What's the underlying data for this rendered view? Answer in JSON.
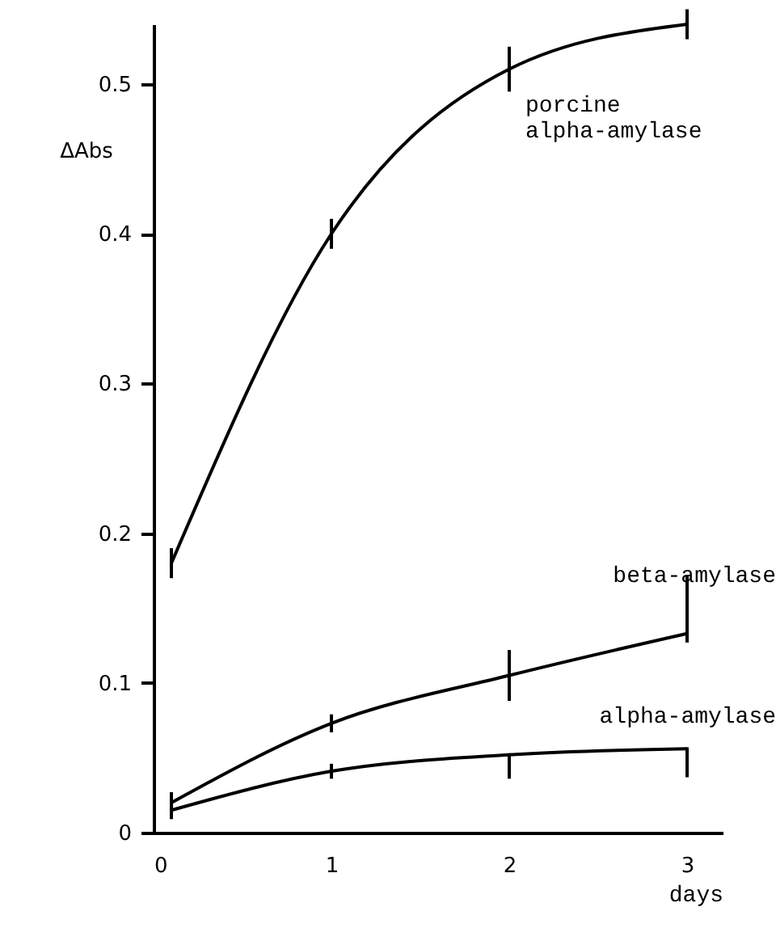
{
  "chart_data": {
    "type": "line",
    "xlabel": "days",
    "ylabel": "ΔAbs",
    "xlim": [
      0,
      3.2
    ],
    "ylim": [
      0,
      0.54
    ],
    "xticks": [
      0,
      1,
      2,
      3
    ],
    "yticks": [
      0,
      0.1,
      0.2,
      0.3,
      0.4,
      0.5
    ],
    "marker": "none",
    "line_style": "solid",
    "grid": false,
    "series": [
      {
        "name": "porcine alpha-amylase",
        "color": "#000000",
        "x": [
          0.1,
          1,
          2,
          3
        ],
        "values": [
          0.18,
          0.4,
          0.51,
          0.54
        ],
        "errors": [
          0.01,
          0.01,
          0.015,
          0.01
        ]
      },
      {
        "name": "beta-amylase",
        "color": "#000000",
        "x": [
          0.1,
          1,
          2,
          3
        ],
        "values": [
          0.02,
          0.073,
          0.105,
          0.133
        ],
        "errors": [
          null,
          0.006,
          0.017,
          [
            0.127,
            0.172
          ]
        ]
      },
      {
        "name": "alpha-amylase",
        "color": "#000000",
        "x": [
          0.1,
          1,
          2,
          3
        ],
        "values": [
          0.015,
          0.041,
          0.052,
          0.056
        ],
        "errors": [
          [
            0.009,
            0.027
          ],
          0.005,
          [
            0.036,
            0.053
          ],
          [
            0.037,
            0.057
          ]
        ]
      }
    ]
  }
}
